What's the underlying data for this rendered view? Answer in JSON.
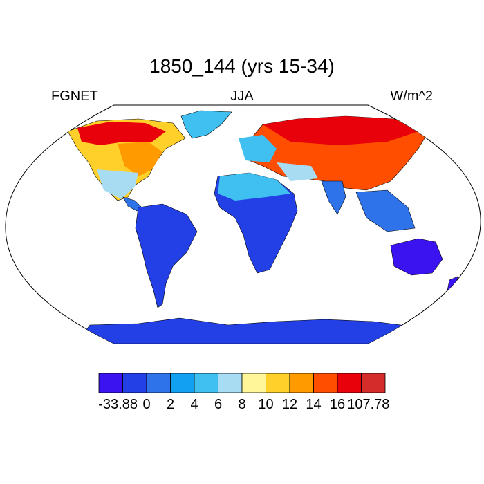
{
  "header": {
    "title": "1850_144 (yrs 15-34)",
    "left_label": "FGNET",
    "center_label": "JJA",
    "right_label": "W/m^2"
  },
  "colorbar": {
    "colors": [
      "#3b13f0",
      "#2240e6",
      "#2f73ea",
      "#12a0f2",
      "#3fc0f0",
      "#a7dcf2",
      "#fff599",
      "#ffd02a",
      "#ff9a00",
      "#ff4e00",
      "#e8000b",
      "#d42b2b"
    ],
    "labels": [
      "-33.88",
      "0",
      "2",
      "4",
      "6",
      "8",
      "10",
      "12",
      "14",
      "16",
      "107.78"
    ]
  },
  "map": {
    "projection": "Robinson",
    "ocean_color": "#ffffff",
    "coastline_color": "#000000"
  }
}
